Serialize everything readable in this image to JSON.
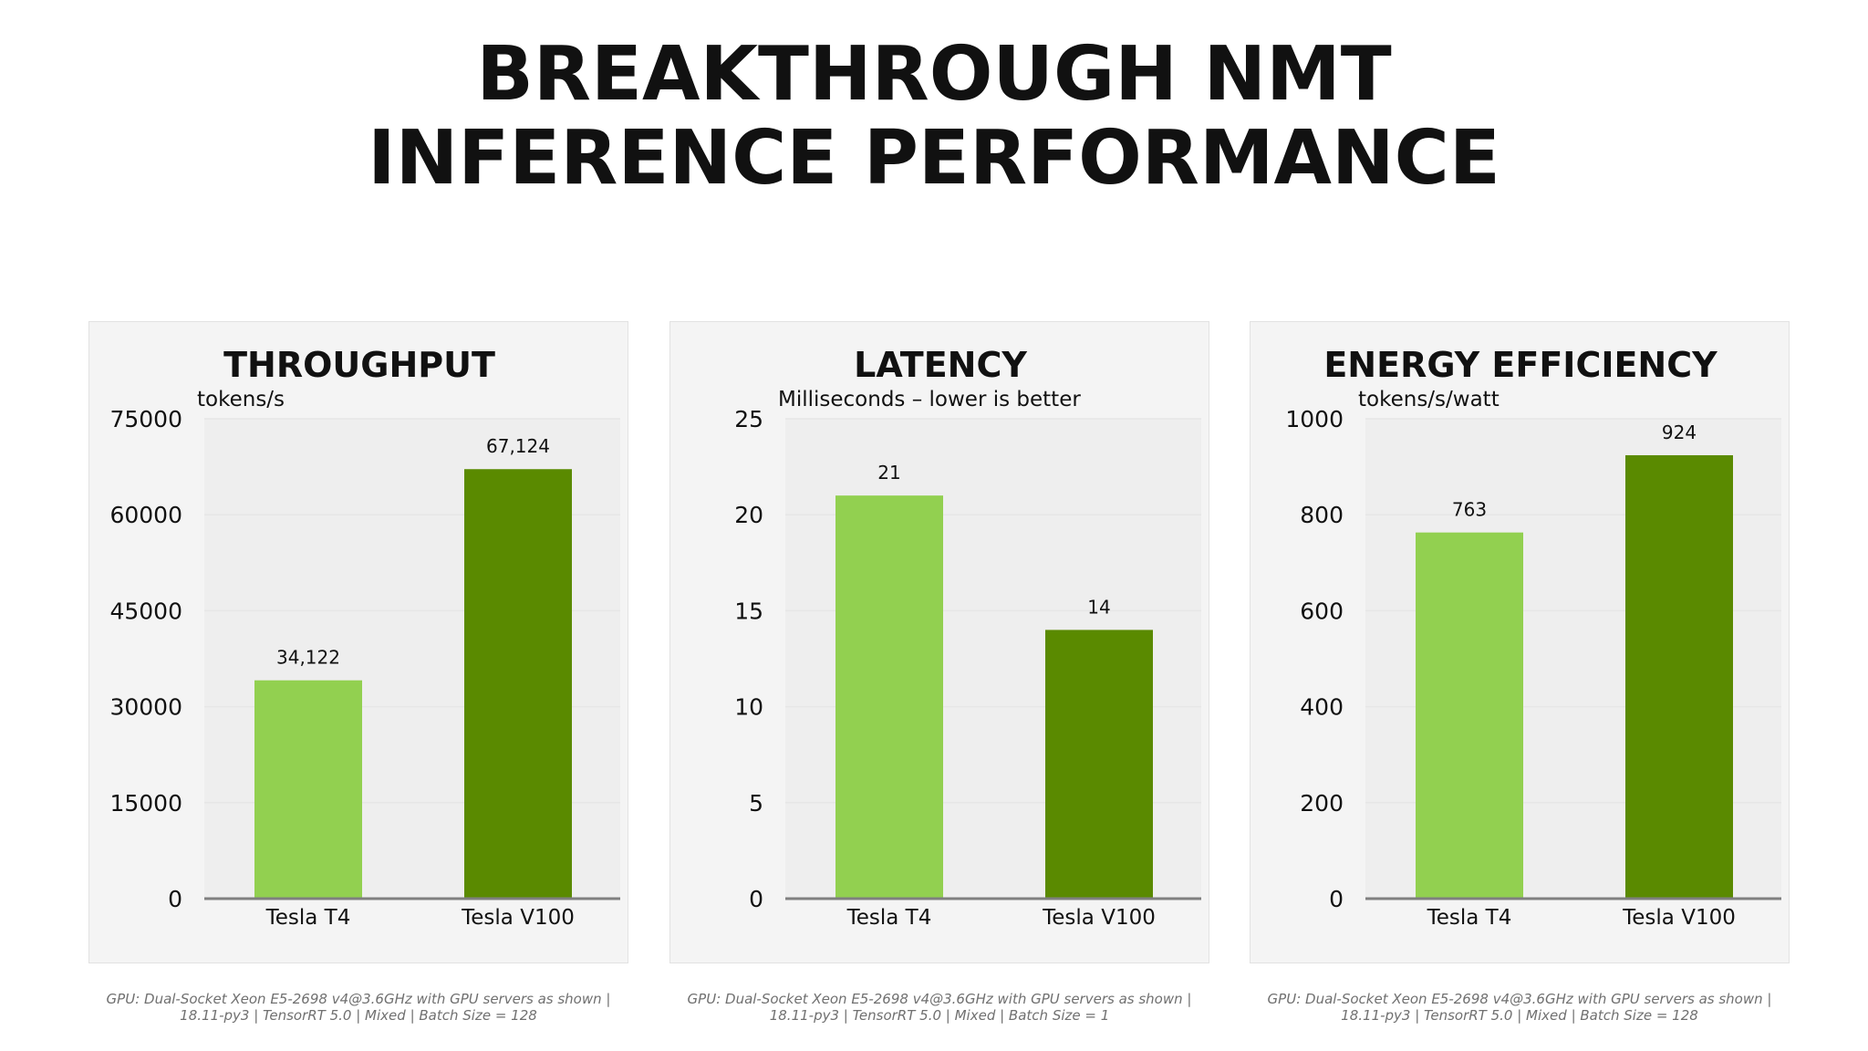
{
  "page": {
    "title_line1": "BREAKTHROUGH NMT",
    "title_line2": "INFERENCE PERFORMANCE"
  },
  "colors": {
    "tesla_t4": "#92d050",
    "tesla_v100": "#5a8a00",
    "axis": "#7f7f7f",
    "gridline": "#e6e6e6",
    "plot_background": "#eeeeee"
  },
  "chart_data": [
    {
      "type": "bar",
      "title": "THROUGHPUT",
      "ylabel": "tokens/s",
      "categories": [
        "Tesla T4",
        "Tesla V100"
      ],
      "values": [
        34122,
        67124
      ],
      "value_labels": [
        "34,122",
        "67,124"
      ],
      "bar_colors": [
        "#92d050",
        "#5a8a00"
      ],
      "ylim": [
        0,
        75000
      ],
      "yticks": [
        0,
        15000,
        30000,
        45000,
        60000,
        75000
      ],
      "ytick_labels": [
        "0",
        "15000",
        "30000",
        "45000",
        "60000",
        "75000"
      ],
      "grid": true,
      "legend": "none",
      "footnote": "GPU: Dual-Socket Xeon E5-2698 v4@3.6GHz with GPU servers as shown |\n18.11-py3 | TensorRT 5.0 | Mixed | Batch Size = 128"
    },
    {
      "type": "bar",
      "title": "LATENCY",
      "ylabel": "Milliseconds – lower is better",
      "categories": [
        "Tesla T4",
        "Tesla V100"
      ],
      "values": [
        21,
        14
      ],
      "value_labels": [
        "21",
        "14"
      ],
      "bar_colors": [
        "#92d050",
        "#5a8a00"
      ],
      "ylim": [
        0,
        25
      ],
      "yticks": [
        0,
        5,
        10,
        15,
        20,
        25
      ],
      "ytick_labels": [
        "0",
        "5",
        "10",
        "15",
        "20",
        "25"
      ],
      "grid": true,
      "legend": "none",
      "footnote": "GPU: Dual-Socket Xeon E5-2698 v4@3.6GHz with GPU servers as shown |\n18.11-py3 | TensorRT 5.0 | Mixed | Batch Size = 1"
    },
    {
      "type": "bar",
      "title": "ENERGY EFFICIENCY",
      "ylabel": "tokens/s/watt",
      "categories": [
        "Tesla T4",
        "Tesla V100"
      ],
      "values": [
        763,
        924
      ],
      "value_labels": [
        "763",
        "924"
      ],
      "bar_colors": [
        "#92d050",
        "#5a8a00"
      ],
      "ylim": [
        0,
        1000
      ],
      "yticks": [
        0,
        200,
        400,
        600,
        800,
        1000
      ],
      "ytick_labels": [
        "0",
        "200",
        "400",
        "600",
        "800",
        "1000"
      ],
      "grid": true,
      "legend": "none",
      "footnote": "GPU: Dual-Socket Xeon E5-2698 v4@3.6GHz with GPU servers as shown |\n18.11-py3 | TensorRT 5.0 | Mixed | Batch Size = 128"
    }
  ]
}
